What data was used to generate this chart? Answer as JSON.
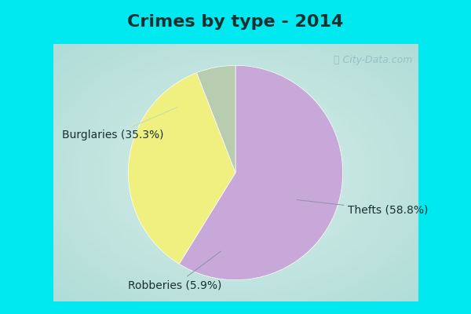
{
  "title": "Crimes by type - 2014",
  "labels": [
    "Thefts",
    "Burglaries",
    "Robberies"
  ],
  "values": [
    58.8,
    35.3,
    5.9
  ],
  "colors": [
    "#c8a8d8",
    "#f0f080",
    "#b8ccb0"
  ],
  "background_fig": "#00e8f0",
  "background_inner_center": "#d8ede8",
  "background_inner_edge": "#b0ddd8",
  "startangle": 90,
  "watermark": "City-Data.com",
  "title_fontsize": 16,
  "label_fontsize": 10,
  "title_color": "#1a3030"
}
